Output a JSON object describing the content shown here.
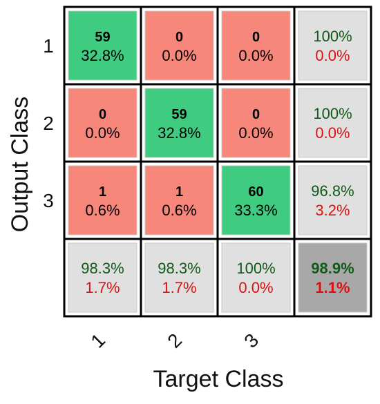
{
  "chart_data": {
    "type": "heatmap",
    "xlabel": "Target Class",
    "ylabel": "Output Class",
    "x_tick_labels": [
      "1",
      "2",
      "3"
    ],
    "y_tick_labels": [
      "1",
      "2",
      "3"
    ],
    "cells": [
      [
        {
          "count": "59",
          "percent": "32.8%"
        },
        {
          "count": "0",
          "percent": "0.0%"
        },
        {
          "count": "0",
          "percent": "0.0%"
        }
      ],
      [
        {
          "count": "0",
          "percent": "0.0%"
        },
        {
          "count": "59",
          "percent": "32.8%"
        },
        {
          "count": "0",
          "percent": "0.0%"
        }
      ],
      [
        {
          "count": "1",
          "percent": "0.6%"
        },
        {
          "count": "1",
          "percent": "0.6%"
        },
        {
          "count": "60",
          "percent": "33.3%"
        }
      ]
    ],
    "row_summary": [
      {
        "correct": "100%",
        "error": "0.0%"
      },
      {
        "correct": "100%",
        "error": "0.0%"
      },
      {
        "correct": "96.8%",
        "error": "3.2%"
      }
    ],
    "col_summary": [
      {
        "correct": "98.3%",
        "error": "1.7%"
      },
      {
        "correct": "98.3%",
        "error": "1.7%"
      },
      {
        "correct": "100%",
        "error": "0.0%"
      }
    ],
    "overall": {
      "correct": "98.9%",
      "error": "1.1%"
    },
    "colors": {
      "correct_cell": "#3fcc80",
      "error_cell": "#f6877a",
      "summary_cell": "#e0e0e0",
      "overall_cell": "#a8a8a8",
      "correct_text": "#0f5a17",
      "error_text": "#dd1010",
      "grid_line": "#000000"
    }
  }
}
